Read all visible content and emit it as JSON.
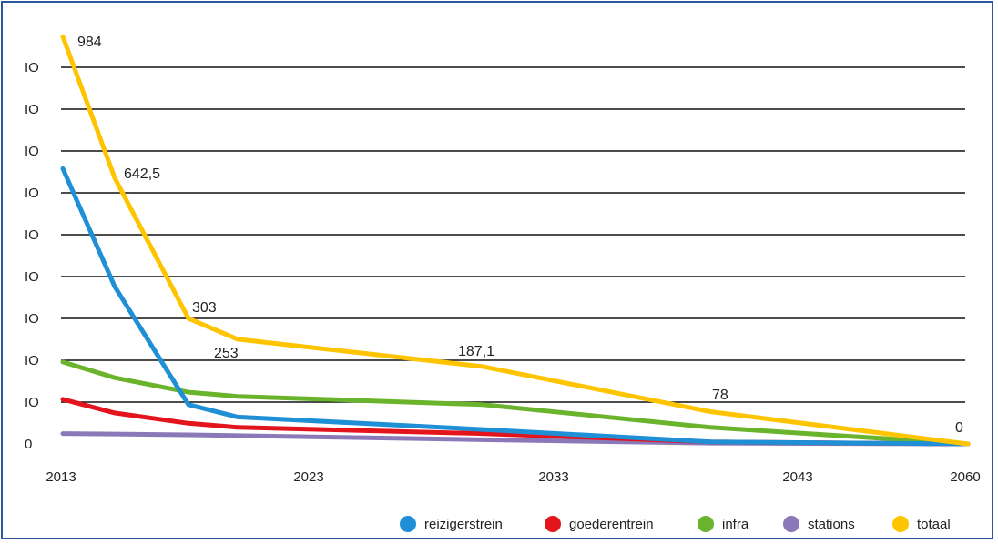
{
  "chart_data": {
    "type": "line",
    "x": [
      2013,
      2015,
      2018,
      2020,
      2032,
      2042,
      2060
    ],
    "x_ticks": [
      "2013",
      "2023",
      "2033",
      "2043",
      "2060"
    ],
    "y_ticks": [
      "0",
      "IO",
      "IO",
      "IO",
      "IO",
      "IO",
      "IO",
      "IO",
      "IO",
      "IO"
    ],
    "ylim": [
      0,
      1000
    ],
    "grid": true,
    "series": [
      {
        "name": "reizigerstrein",
        "color": "#1f8fd6",
        "values": [
          665,
          380,
          95,
          65,
          35,
          5,
          0
        ]
      },
      {
        "name": "goederentrein",
        "color": "#e3141b",
        "values": [
          108,
          75,
          50,
          40,
          25,
          5,
          0
        ]
      },
      {
        "name": "infra",
        "color": "#6ab42d",
        "values": [
          198,
          160,
          125,
          115,
          95,
          40,
          0
        ]
      },
      {
        "name": "stations",
        "color": "#8b78b8",
        "values": [
          25,
          24,
          22,
          20,
          10,
          2,
          0
        ]
      },
      {
        "name": "totaal",
        "color": "#ffc400",
        "values": [
          984,
          642.5,
          303,
          253,
          187.1,
          78,
          0
        ]
      }
    ],
    "annotations": [
      {
        "text": "984",
        "x": 2013,
        "y": 984
      },
      {
        "text": "642,5",
        "x": 2015,
        "y": 642.5
      },
      {
        "text": "303",
        "x": 2018,
        "y": 303
      },
      {
        "text": "253",
        "x": 2020,
        "y": 253
      },
      {
        "text": "187,1",
        "x": 2032,
        "y": 187.1
      },
      {
        "text": "78",
        "x": 2042,
        "y": 78
      },
      {
        "text": "0",
        "x": 2060,
        "y": 0
      }
    ],
    "legend_position": "bottom-right"
  }
}
